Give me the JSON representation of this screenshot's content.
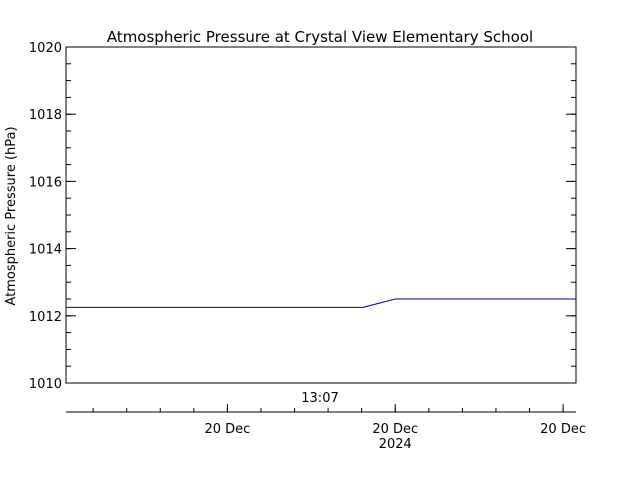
{
  "chart_data": {
    "type": "line",
    "title": "Atmospheric Pressure at Crystal View Elementary School",
    "ylabel": "Atmospheric Pressure (hPa)",
    "xlabel": "",
    "ylim": [
      1010,
      1020
    ],
    "xlim": [
      -2.55,
      1.4
    ],
    "y_ticks": [
      "1010",
      "1012",
      "1014",
      "1016",
      "1018",
      "1020"
    ],
    "y_tick_values": [
      1010,
      1012,
      1014,
      1016,
      1018,
      1020
    ],
    "y_minor_step": 0.5,
    "time_marker": "13:07",
    "x_ticks": [
      {
        "value": -1.3,
        "label": "20 Dec",
        "sublabel": ""
      },
      {
        "value": 0,
        "label": "20 Dec",
        "sublabel": "2024"
      },
      {
        "value": 1.3,
        "label": "20 Dec",
        "sublabel": ""
      }
    ],
    "x_minor_step": 0.26,
    "series": [
      {
        "color": "#00008B",
        "x": [
          -2.55,
          -0.25,
          0,
          1.4
        ],
        "y": [
          1012.25,
          1012.25,
          1012.5,
          1012.5
        ]
      }
    ],
    "grid": false,
    "legend": "none"
  }
}
